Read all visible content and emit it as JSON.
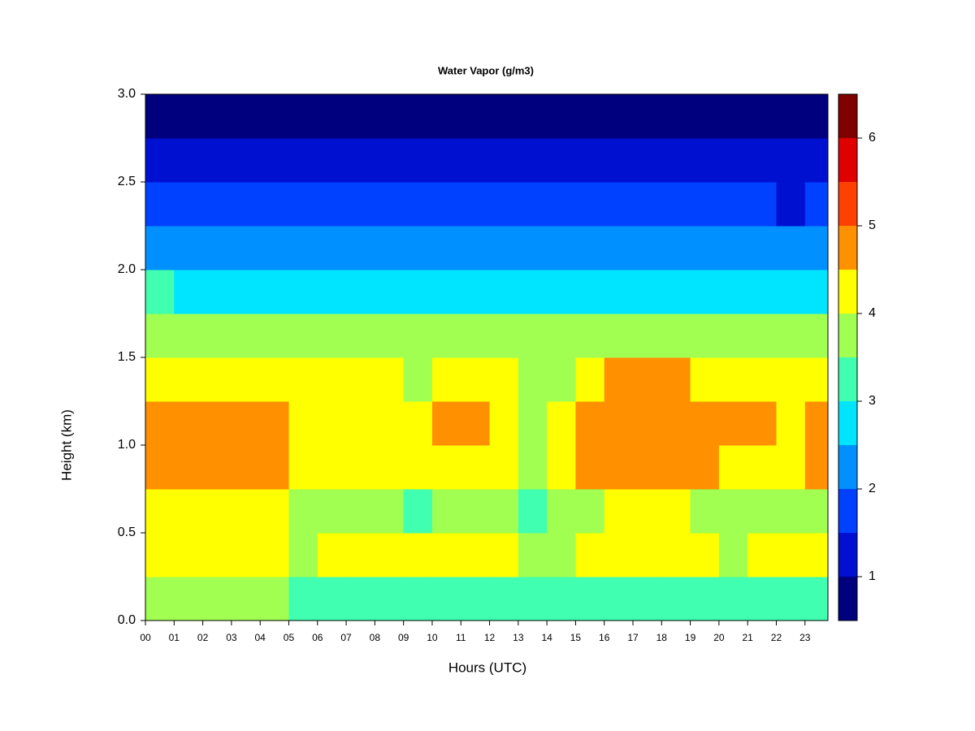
{
  "chart_data": {
    "type": "filled-contour",
    "title": "Water Vapor (g/m3)",
    "x_label": "Hours (UTC)",
    "y_label": "Height (km)",
    "x": [
      0.5,
      1.5,
      2.5,
      3.5,
      4.5,
      5.5,
      6.5,
      7.5,
      8.5,
      9.5,
      10.5,
      11.5,
      12.5,
      13.5,
      14.5,
      15.5,
      16.5,
      17.5,
      18.5,
      19.5,
      20.5,
      21.5,
      22.5,
      23.5
    ],
    "y": [
      0.125,
      0.375,
      0.625,
      0.875,
      1.125,
      1.375,
      1.625,
      1.875,
      2.125,
      2.375,
      2.625,
      2.875
    ],
    "z": [
      [
        3.6,
        3.6,
        3.6,
        3.6,
        3.6,
        3.3,
        3.2,
        3.2,
        3.3,
        3.3,
        3.3,
        3.2,
        3.2,
        3.3,
        3.2,
        3.3,
        3.3,
        3.3,
        3.3,
        3.3,
        3.3,
        3.2,
        3.3,
        3.4
      ],
      [
        4.3,
        4.4,
        4.4,
        4.3,
        4.3,
        3.9,
        4.1,
        4.1,
        4.1,
        4.0,
        4.2,
        4.2,
        4.1,
        3.8,
        3.8,
        4.2,
        4.2,
        4.2,
        4.2,
        4.1,
        3.9,
        4.2,
        4.2,
        4.2
      ],
      [
        4.2,
        4.3,
        4.3,
        4.2,
        4.1,
        3.9,
        3.8,
        3.8,
        3.8,
        3.4,
        3.7,
        3.8,
        3.7,
        3.4,
        3.5,
        3.9,
        4.2,
        4.2,
        4.1,
        3.9,
        3.8,
        3.8,
        3.9,
        3.9
      ],
      [
        4.5,
        4.7,
        4.7,
        4.6,
        4.6,
        4.2,
        4.3,
        4.3,
        4.3,
        4.0,
        4.4,
        4.4,
        4.3,
        3.9,
        4.0,
        4.6,
        4.9,
        4.9,
        4.8,
        4.6,
        4.4,
        4.4,
        4.3,
        4.5
      ],
      [
        4.5,
        4.7,
        4.7,
        4.6,
        4.6,
        4.3,
        4.4,
        4.4,
        4.3,
        4.0,
        4.5,
        4.5,
        4.3,
        3.9,
        4.0,
        4.6,
        4.9,
        4.9,
        4.9,
        4.6,
        4.5,
        4.5,
        4.3,
        4.5
      ],
      [
        4.3,
        4.4,
        4.4,
        4.3,
        4.3,
        4.1,
        4.2,
        4.1,
        4.1,
        3.9,
        4.1,
        4.1,
        4.0,
        3.8,
        3.9,
        4.3,
        4.5,
        4.5,
        4.5,
        4.3,
        4.2,
        4.2,
        4.1,
        4.2
      ],
      [
        3.7,
        3.8,
        3.8,
        3.8,
        3.7,
        3.7,
        3.7,
        3.7,
        3.7,
        3.6,
        3.7,
        3.7,
        3.6,
        3.5,
        3.5,
        3.7,
        3.8,
        3.8,
        3.8,
        3.7,
        3.7,
        3.6,
        3.6,
        3.6
      ],
      [
        3.1,
        2.9,
        2.9,
        2.9,
        2.9,
        2.9,
        2.9,
        2.9,
        2.8,
        2.8,
        2.9,
        2.8,
        2.8,
        2.8,
        2.8,
        2.8,
        2.9,
        2.9,
        2.9,
        2.9,
        2.9,
        2.8,
        2.8,
        2.8
      ],
      [
        2.3,
        2.3,
        2.2,
        2.2,
        2.2,
        2.3,
        2.3,
        2.3,
        2.2,
        2.2,
        2.2,
        2.2,
        2.2,
        2.2,
        2.2,
        2.3,
        2.3,
        2.3,
        2.3,
        2.3,
        2.3,
        2.2,
        2.1,
        2.1
      ],
      [
        1.8,
        1.8,
        1.8,
        1.7,
        1.7,
        1.9,
        1.8,
        1.8,
        1.7,
        1.8,
        1.7,
        1.7,
        1.7,
        1.7,
        1.7,
        1.8,
        1.9,
        1.9,
        1.9,
        1.8,
        1.9,
        1.7,
        1.4,
        1.5
      ],
      [
        1.3,
        1.3,
        1.3,
        1.2,
        1.2,
        1.4,
        1.3,
        1.3,
        1.2,
        1.3,
        1.2,
        1.1,
        1.1,
        1.2,
        1.2,
        1.3,
        1.3,
        1.3,
        1.3,
        1.2,
        1.3,
        1.2,
        1.0,
        1.1
      ],
      [
        0.9,
        0.9,
        0.9,
        0.8,
        0.8,
        0.9,
        0.9,
        0.9,
        0.8,
        0.8,
        0.8,
        0.8,
        0.8,
        0.8,
        0.8,
        0.9,
        0.8,
        0.8,
        0.8,
        0.8,
        0.8,
        0.7,
        0.7,
        0.7
      ]
    ],
    "xlim": [
      0,
      23.8
    ],
    "xticks": [
      {
        "value": 0,
        "label": "00"
      },
      {
        "value": 1,
        "label": "01"
      },
      {
        "value": 2,
        "label": "02"
      },
      {
        "value": 3,
        "label": "03"
      },
      {
        "value": 4,
        "label": "04"
      },
      {
        "value": 5,
        "label": "05"
      },
      {
        "value": 6,
        "label": "06"
      },
      {
        "value": 7,
        "label": "07"
      },
      {
        "value": 8,
        "label": "08"
      },
      {
        "value": 9,
        "label": "09"
      },
      10,
      11,
      12,
      13,
      14,
      15,
      16,
      17,
      18,
      19,
      20,
      21,
      22,
      23
    ],
    "ylim": [
      0,
      3
    ],
    "yticks": [
      {
        "value": 0,
        "label": "0.0"
      },
      0.5,
      {
        "value": 1,
        "label": "1.0"
      },
      1.5,
      {
        "value": 2,
        "label": "2.0"
      },
      2.5,
      {
        "value": 3,
        "label": "3.0"
      }
    ],
    "levels": [
      0.5,
      1,
      1.5,
      2,
      2.5,
      3,
      3.5,
      4,
      4.5,
      5,
      5.5,
      6,
      6.5
    ],
    "colors": [
      "#00007f",
      "#0010d0",
      "#0040ff",
      "#0090ff",
      "#00e5ff",
      "#40ffb0",
      "#a0ff50",
      "#ffff00",
      "#ff9000",
      "#ff4000",
      "#e00000",
      "#800000"
    ],
    "colorbar_ticks": [
      1,
      2,
      3,
      4,
      5,
      6
    ]
  }
}
